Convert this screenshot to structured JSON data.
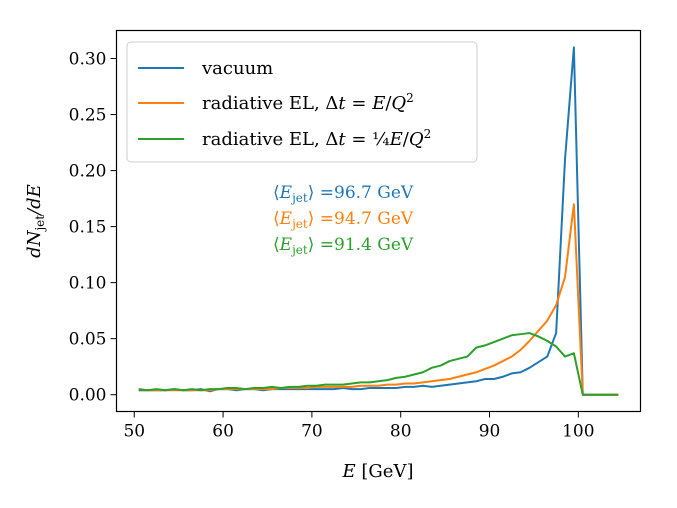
{
  "chart_data": {
    "type": "line",
    "title": "",
    "xlabel": "E [GeV]",
    "ylabel": "dN_jet/dE",
    "xlim": [
      48,
      107
    ],
    "ylim": [
      -0.015,
      0.325
    ],
    "xticks": [
      50,
      60,
      70,
      80,
      90,
      100
    ],
    "xtick_labels": [
      "50",
      "60",
      "70",
      "80",
      "90",
      "100"
    ],
    "yticks": [
      0.0,
      0.05,
      0.1,
      0.15,
      0.2,
      0.25,
      0.3
    ],
    "ytick_labels": [
      "0.00",
      "0.05",
      "0.10",
      "0.15",
      "0.20",
      "0.25",
      "0.30"
    ],
    "grid": false,
    "legend_position": "top-left",
    "x": [
      50.5,
      51.5,
      52.5,
      53.5,
      54.5,
      55.5,
      56.5,
      57.5,
      58.5,
      59.5,
      60.5,
      61.5,
      62.5,
      63.5,
      64.5,
      65.5,
      66.5,
      67.5,
      68.5,
      69.5,
      70.5,
      71.5,
      72.5,
      73.5,
      74.5,
      75.5,
      76.5,
      77.5,
      78.5,
      79.5,
      80.5,
      81.5,
      82.5,
      83.5,
      84.5,
      85.5,
      86.5,
      87.5,
      88.5,
      89.5,
      90.5,
      91.5,
      92.5,
      93.5,
      94.5,
      95.5,
      96.5,
      97.5,
      98.5,
      99.5,
      100.5,
      101.5,
      102.5,
      103.5,
      104.5
    ],
    "series": [
      {
        "name": "vacuum",
        "color": "#1f77b4",
        "values": [
          0.005,
          0.004,
          0.004,
          0.004,
          0.005,
          0.004,
          0.004,
          0.005,
          0.003,
          0.005,
          0.005,
          0.004,
          0.005,
          0.005,
          0.004,
          0.005,
          0.005,
          0.005,
          0.005,
          0.005,
          0.005,
          0.005,
          0.005,
          0.006,
          0.005,
          0.005,
          0.006,
          0.006,
          0.006,
          0.006,
          0.007,
          0.007,
          0.008,
          0.007,
          0.008,
          0.009,
          0.01,
          0.011,
          0.012,
          0.014,
          0.014,
          0.016,
          0.019,
          0.02,
          0.024,
          0.029,
          0.034,
          0.055,
          0.21,
          0.31,
          0.0,
          0.0,
          0.0,
          0.0,
          0.0
        ]
      },
      {
        "name": "radiative EL, Δt = E/Q²",
        "color": "#ff7f0e",
        "values": [
          0.004,
          0.004,
          0.004,
          0.004,
          0.004,
          0.004,
          0.004,
          0.004,
          0.004,
          0.005,
          0.005,
          0.005,
          0.005,
          0.005,
          0.005,
          0.005,
          0.006,
          0.006,
          0.006,
          0.006,
          0.007,
          0.007,
          0.007,
          0.007,
          0.007,
          0.008,
          0.008,
          0.008,
          0.009,
          0.009,
          0.01,
          0.01,
          0.011,
          0.012,
          0.013,
          0.014,
          0.016,
          0.018,
          0.02,
          0.023,
          0.026,
          0.03,
          0.034,
          0.04,
          0.048,
          0.057,
          0.066,
          0.08,
          0.105,
          0.17,
          0.0,
          0.0,
          0.0,
          0.0,
          0.0
        ]
      },
      {
        "name": "radiative EL, Δt = ¼E/Q²",
        "color": "#2ca02c",
        "values": [
          0.004,
          0.004,
          0.005,
          0.004,
          0.005,
          0.004,
          0.005,
          0.004,
          0.005,
          0.005,
          0.006,
          0.006,
          0.005,
          0.006,
          0.006,
          0.007,
          0.006,
          0.007,
          0.007,
          0.008,
          0.008,
          0.009,
          0.009,
          0.009,
          0.01,
          0.011,
          0.011,
          0.012,
          0.013,
          0.015,
          0.016,
          0.018,
          0.02,
          0.024,
          0.026,
          0.03,
          0.032,
          0.034,
          0.042,
          0.044,
          0.047,
          0.05,
          0.053,
          0.054,
          0.055,
          0.052,
          0.048,
          0.043,
          0.034,
          0.037,
          0.0,
          0.0,
          0.0,
          0.0,
          0.0
        ]
      }
    ],
    "legend": [
      {
        "text": "vacuum",
        "color": "#1f77b4"
      },
      {
        "text": "radiative EL, Δt = E/Q²",
        "color": "#ff7f0e"
      },
      {
        "text": "radiative EL, Δt = ¼E/Q²",
        "color": "#2ca02c"
      }
    ],
    "annotations": [
      {
        "text": "⟨E_jet⟩ =96.7 GeV",
        "color": "#1f77b4"
      },
      {
        "text": "⟨E_jet⟩ =94.7 GeV",
        "color": "#ff7f0e"
      },
      {
        "text": "⟨E_jet⟩ =91.4 GeV",
        "color": "#2ca02c"
      }
    ]
  }
}
